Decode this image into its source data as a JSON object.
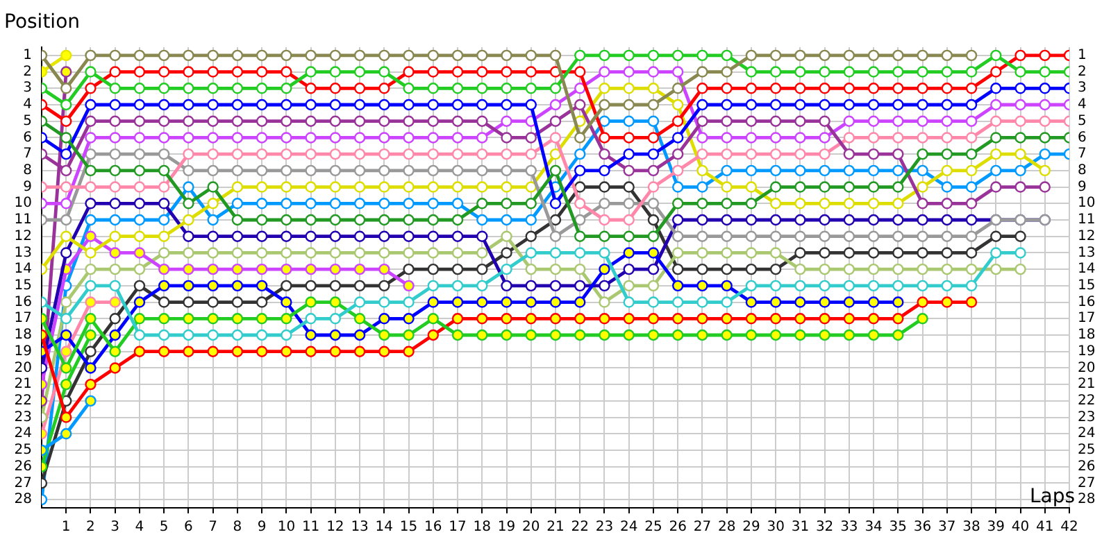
{
  "chart_data": {
    "type": "line",
    "xlabel": "Laps",
    "ylabel": "Position",
    "marker": "circle",
    "grid": true,
    "x": [
      0,
      1,
      2,
      3,
      4,
      5,
      6,
      7,
      8,
      9,
      10,
      11,
      12,
      13,
      14,
      15,
      16,
      17,
      18,
      19,
      20,
      21,
      22,
      23,
      24,
      25,
      26,
      27,
      28,
      29,
      30,
      31,
      32,
      33,
      34,
      35,
      36,
      37,
      38,
      39,
      40,
      41,
      42
    ],
    "xlim": [
      0,
      42
    ],
    "xticks": [
      1,
      2,
      3,
      4,
      5,
      6,
      7,
      8,
      9,
      10,
      11,
      12,
      13,
      14,
      15,
      16,
      17,
      18,
      19,
      20,
      21,
      22,
      23,
      24,
      25,
      26,
      27,
      28,
      29,
      30,
      31,
      32,
      33,
      34,
      35,
      36,
      37,
      38,
      39,
      40,
      41,
      42
    ],
    "ylim": [
      28.5,
      0.5
    ],
    "yticks": [
      1,
      2,
      3,
      4,
      5,
      6,
      7,
      8,
      9,
      10,
      11,
      12,
      13,
      14,
      15,
      16,
      17,
      18,
      19,
      20,
      21,
      22,
      23,
      24,
      25,
      26,
      27,
      28
    ],
    "y2lim": [
      28.5,
      0.5
    ],
    "y2ticks": [
      1,
      2,
      3,
      4,
      5,
      6,
      7,
      8,
      9,
      10,
      11,
      12,
      13,
      14,
      15,
      16,
      17,
      18,
      19,
      20,
      21,
      22,
      23,
      24,
      25,
      26,
      27,
      28
    ],
    "series": [
      {
        "color": "#888850",
        "values": [
          1,
          3,
          1,
          1,
          1,
          1,
          1,
          1,
          1,
          1,
          1,
          1,
          1,
          1,
          1,
          1,
          1,
          1,
          1,
          1,
          1,
          1,
          6,
          4,
          4,
          4,
          3,
          2,
          2,
          1,
          1,
          1,
          1,
          1,
          1,
          1,
          1,
          1,
          1,
          null,
          null,
          null,
          null
        ]
      },
      {
        "color": "#e6e600",
        "values": [
          2,
          1,
          null,
          null,
          null,
          null,
          null,
          null,
          null,
          null,
          null,
          null,
          null,
          null,
          null,
          null,
          null,
          null,
          null,
          null,
          null,
          null,
          null,
          null,
          null,
          null,
          null,
          null,
          null,
          null,
          null,
          null,
          null,
          null,
          null,
          null,
          null,
          null,
          null,
          null,
          null,
          null,
          null
        ],
        "colors": [
          "#ffff00",
          "#ffff00",
          "#ffff00",
          "#ffff00",
          "#ffff00",
          "#ffff00",
          "#ffff00",
          "#ffff00",
          "#ffff00",
          "#ffff00",
          "#ffff00",
          "#ffff00",
          "#ffff00",
          "#ffff00",
          "#ffff00",
          "#ffff00",
          "#ffff00",
          "#ffff00",
          "#ffff00",
          "#ffff00",
          "#ffff00",
          "#ffff00",
          "#ffff00",
          "#ffff00",
          "#ffff00",
          "#ffff00",
          "#ffff00",
          "#ffff00",
          "#ffff00",
          "#ffff00",
          "#ffff00",
          "#ffff00",
          "#ffff00",
          "#ffff00",
          "#ffff00",
          "#ffff00",
          "#ffff00",
          "#ffff00",
          "#ffff00",
          "#ffff00",
          "#ffff00",
          "#ffff00",
          "#ffff00"
        ]
      },
      {
        "color": "#22cc22",
        "values": [
          3,
          4,
          2,
          3,
          3,
          3,
          3,
          3,
          3,
          3,
          3,
          2,
          2,
          2,
          2,
          3,
          3,
          3,
          3,
          3,
          3,
          3,
          1,
          1,
          1,
          1,
          1,
          1,
          1,
          2,
          2,
          2,
          2,
          2,
          2,
          2,
          2,
          2,
          2,
          1,
          2,
          2,
          2
        ]
      },
      {
        "color": "#ff0000",
        "values": [
          4,
          5,
          3,
          2,
          2,
          2,
          2,
          2,
          2,
          2,
          2,
          3,
          3,
          3,
          3,
          2,
          2,
          2,
          2,
          2,
          2,
          2,
          2,
          6,
          6,
          6,
          5,
          3,
          3,
          3,
          3,
          3,
          3,
          3,
          3,
          3,
          3,
          3,
          3,
          2,
          1,
          1,
          1
        ]
      },
      {
        "color": "#229922",
        "values": [
          5,
          6,
          8,
          8,
          8,
          8,
          10,
          9,
          11,
          11,
          11,
          11,
          11,
          11,
          11,
          11,
          11,
          11,
          10,
          10,
          10,
          8,
          12,
          12,
          12,
          12,
          10,
          10,
          10,
          10,
          9,
          9,
          9,
          9,
          9,
          9,
          7,
          7,
          7,
          6,
          6,
          6,
          6
        ]
      },
      {
        "color": "#0000ff",
        "values": [
          6,
          7,
          4,
          4,
          4,
          4,
          4,
          4,
          4,
          4,
          4,
          4,
          4,
          4,
          4,
          4,
          4,
          4,
          4,
          4,
          4,
          10,
          8,
          8,
          7,
          7,
          6,
          4,
          4,
          4,
          4,
          4,
          4,
          4,
          4,
          4,
          4,
          4,
          4,
          3,
          3,
          3,
          3
        ]
      },
      {
        "color": "#993399",
        "values": [
          7,
          8,
          5,
          5,
          5,
          5,
          5,
          5,
          5,
          5,
          5,
          5,
          5,
          5,
          5,
          5,
          5,
          5,
          5,
          6,
          6,
          5,
          4,
          7,
          8,
          8,
          7,
          5,
          5,
          5,
          5,
          5,
          5,
          7,
          7,
          7,
          10,
          10,
          10,
          9,
          9,
          9,
          null
        ]
      },
      {
        "color": "#ff88aa",
        "values": [
          9,
          9,
          9,
          9,
          9,
          9,
          7,
          7,
          7,
          7,
          7,
          7,
          7,
          7,
          7,
          7,
          7,
          7,
          7,
          7,
          7,
          6,
          10,
          11,
          11,
          9,
          8,
          7,
          7,
          7,
          7,
          7,
          7,
          6,
          6,
          6,
          6,
          6,
          6,
          5,
          5,
          5,
          5
        ]
      },
      {
        "color": "#cc44ff",
        "values": [
          10,
          10,
          6,
          6,
          6,
          6,
          6,
          6,
          6,
          6,
          6,
          6,
          6,
          6,
          6,
          6,
          6,
          6,
          6,
          5,
          5,
          4,
          3,
          2,
          2,
          2,
          2,
          6,
          6,
          6,
          6,
          6,
          6,
          5,
          5,
          5,
          5,
          5,
          5,
          4,
          4,
          4,
          4
        ]
      },
      {
        "color": "#999999",
        "values": [
          11,
          11,
          7,
          7,
          7,
          7,
          8,
          8,
          8,
          8,
          8,
          8,
          8,
          8,
          8,
          8,
          8,
          8,
          8,
          8,
          8,
          12,
          11,
          10,
          10,
          10,
          12,
          12,
          12,
          12,
          12,
          12,
          12,
          12,
          12,
          12,
          12,
          12,
          12,
          11,
          11,
          11,
          null
        ]
      },
      {
        "color": "#dddd00",
        "values": [
          14,
          12,
          13,
          12,
          12,
          12,
          11,
          10,
          9,
          9,
          9,
          9,
          9,
          9,
          9,
          9,
          9,
          9,
          9,
          9,
          9,
          7,
          5,
          3,
          3,
          3,
          4,
          8,
          9,
          9,
          10,
          10,
          10,
          10,
          10,
          10,
          9,
          8,
          8,
          7,
          7,
          8,
          null
        ]
      },
      {
        "color": "#33cccc",
        "values": [
          16,
          17,
          15,
          15,
          18,
          18,
          18,
          18,
          18,
          18,
          18,
          17,
          17,
          16,
          16,
          16,
          15,
          15,
          15,
          14,
          13,
          13,
          13,
          13,
          16,
          16,
          16,
          16,
          16,
          15,
          15,
          15,
          15,
          15,
          15,
          15,
          15,
          15,
          15,
          13,
          13,
          null,
          null
        ]
      },
      {
        "color": "#22cc22",
        "values": [
          17,
          20,
          17,
          19,
          17,
          17,
          17,
          17,
          17,
          17,
          17,
          16,
          16,
          17,
          18,
          18,
          17,
          18,
          18,
          18,
          18,
          18,
          18,
          18,
          18,
          18,
          18,
          18,
          18,
          18,
          18,
          18,
          18,
          18,
          18,
          18,
          17,
          null,
          null,
          null,
          null,
          null,
          null
        ],
        "colors": [
          "#ffff00",
          "#ffff00",
          "#ffff00",
          "#ffff00",
          "#ffff00",
          "#ffff00",
          "#ffff00",
          "#ffff00",
          "#ffff00",
          "#ffff00",
          "#ffff00",
          "#ffff00",
          "#ffff00",
          "#ffff00",
          "#ffff00",
          "#ffff00",
          "#ffff00",
          "#ffff00",
          "#ffff00",
          "#ffff00",
          "#ffff00",
          "#ffff00",
          "#ffff00",
          "#ffff00",
          "#ffff00",
          "#ffff00",
          "#ffff00",
          "#ffff00",
          "#ffff00",
          "#ffff00",
          "#ffff00",
          "#ffff00",
          "#ffff00",
          "#ffff00",
          "#ffff00",
          "#ffff00",
          "#ffff00",
          "#ffff00",
          "#ffff00",
          "#ffff00",
          "#ffff00",
          "#ffff00",
          "#ffff00"
        ]
      },
      {
        "color": "#ff0000",
        "values": [
          18,
          23,
          21,
          20,
          19,
          19,
          19,
          19,
          19,
          19,
          19,
          19,
          19,
          19,
          19,
          19,
          18,
          17,
          17,
          17,
          17,
          17,
          17,
          17,
          17,
          17,
          17,
          17,
          17,
          17,
          17,
          17,
          17,
          17,
          17,
          17,
          16,
          16,
          16,
          null,
          null,
          null,
          null
        ],
        "colors": [
          "#ffff00",
          "#ffff00",
          "#ffff00",
          "#ffff00",
          "#ffff00",
          "#ffff00",
          "#ffff00",
          "#ffff00",
          "#ffff00",
          "#ffff00",
          "#ffff00",
          "#ffff00",
          "#ffff00",
          "#ffff00",
          "#ffff00",
          "#ffff00",
          "#ffff00",
          "#ffff00",
          "#ffff00",
          "#ffff00",
          "#ffff00",
          "#ffff00",
          "#ffff00",
          "#ffff00",
          "#ffff00",
          "#ffff00",
          "#ffff00",
          "#ffff00",
          "#ffff00",
          "#ffff00",
          "#ffff00",
          "#ffff00",
          "#ffff00",
          "#ffff00",
          "#ffff00",
          "#ffff00",
          "#ffff00",
          "#ffff00",
          "#ffff00",
          "#ffff00",
          "#ffff00",
          "#ffff00",
          "#ffff00"
        ]
      },
      {
        "color": "#0000ff",
        "values": [
          19,
          18,
          20,
          18,
          16,
          15,
          15,
          15,
          15,
          15,
          16,
          18,
          18,
          18,
          17,
          17,
          16,
          16,
          16,
          16,
          16,
          16,
          16,
          14,
          13,
          13,
          15,
          15,
          15,
          16,
          16,
          16,
          16,
          16,
          16,
          16,
          null,
          null,
          null,
          null,
          null,
          null,
          null
        ],
        "colors": [
          "#ffff00",
          "#ffff00",
          "#ffff00",
          "#ffff00",
          "#ffff00",
          "#ffff00",
          "#ffff00",
          "#ffff00",
          "#ffff00",
          "#ffff00",
          "#ffff00",
          "#ffff00",
          "#ffff00",
          "#ffff00",
          "#ffff00",
          "#ffff00",
          "#ffff00",
          "#ffff00",
          "#ffff00",
          "#ffff00",
          "#ffff00",
          "#ffff00",
          "#ffff00",
          "#ffff00",
          "#ffff00",
          "#ffff00",
          "#ffff00",
          "#ffff00",
          "#ffff00",
          "#ffff00",
          "#ffff00",
          "#ffff00",
          "#ffff00",
          "#ffff00",
          "#ffff00",
          "#ffff00",
          "#ffff00",
          "#ffff00",
          "#ffff00",
          "#ffff00",
          "#ffff00",
          "#ffff00",
          "#ffff00"
        ]
      },
      {
        "color": "#2200b0",
        "values": [
          20,
          13,
          10,
          10,
          10,
          10,
          12,
          12,
          12,
          12,
          12,
          12,
          12,
          12,
          12,
          12,
          12,
          12,
          12,
          15,
          15,
          15,
          15,
          15,
          14,
          14,
          11,
          11,
          11,
          11,
          11,
          11,
          11,
          11,
          11,
          11,
          11,
          11,
          11,
          11,
          11,
          11,
          null
        ]
      },
      {
        "color": "#cc44ff",
        "values": [
          21,
          14,
          12,
          13,
          13,
          14,
          14,
          14,
          14,
          14,
          14,
          14,
          14,
          14,
          14,
          15,
          null,
          null,
          null,
          null,
          null,
          null,
          null,
          null,
          null,
          null,
          null,
          null,
          null,
          null,
          null,
          null,
          null,
          null,
          null,
          null,
          null,
          null,
          null,
          null,
          null,
          null,
          null
        ],
        "colors": [
          "#ffff00",
          "#ffff00",
          "#ffff00",
          "#ffff00",
          "#ffff00",
          "#ffff00",
          "#ffff00",
          "#ffff00",
          "#ffff00",
          "#ffff00",
          "#ffff00",
          "#ffff00",
          "#ffff00",
          "#ffff00",
          "#ffff00",
          "#ffff00",
          "#ffff00",
          "#ffff00",
          "#ffff00",
          "#ffff00",
          "#ffff00",
          "#ffff00",
          "#ffff00",
          "#ffff00",
          "#ffff00",
          "#ffff00",
          "#ffff00",
          "#ffff00",
          "#ffff00",
          "#ffff00",
          "#ffff00",
          "#ffff00",
          "#ffff00",
          "#ffff00",
          "#ffff00",
          "#ffff00",
          "#ffff00",
          "#ffff00",
          "#ffff00",
          "#ffff00",
          "#ffff00",
          "#ffff00",
          "#ffff00"
        ]
      },
      {
        "color": "#993399",
        "values": [
          22,
          2,
          null,
          null,
          null,
          null,
          null,
          null,
          null,
          null,
          null,
          null,
          null,
          null,
          null,
          null,
          null,
          null,
          null,
          null,
          null,
          null,
          null,
          null,
          null,
          null,
          null,
          null,
          null,
          null,
          null,
          null,
          null,
          null,
          null,
          null,
          null,
          null,
          null,
          null,
          null,
          null,
          null
        ],
        "colors": [
          "#ffff00",
          "#ffff00",
          "#ffff00",
          "#ffff00",
          "#ffff00",
          "#ffff00",
          "#ffff00",
          "#ffff00",
          "#ffff00",
          "#ffff00",
          "#ffff00",
          "#ffff00",
          "#ffff00",
          "#ffff00",
          "#ffff00",
          "#ffff00",
          "#ffff00",
          "#ffff00",
          "#ffff00",
          "#ffff00",
          "#ffff00",
          "#ffff00",
          "#ffff00",
          "#ffff00",
          "#ffff00",
          "#ffff00",
          "#ffff00",
          "#ffff00",
          "#ffff00",
          "#ffff00",
          "#ffff00",
          "#ffff00",
          "#ffff00",
          "#ffff00",
          "#ffff00",
          "#ffff00",
          "#ffff00",
          "#ffff00",
          "#ffff00",
          "#ffff00",
          "#ffff00",
          "#ffff00",
          "#ffff00"
        ]
      },
      {
        "color": "#aac870",
        "values": [
          23,
          16,
          14,
          14,
          14,
          13,
          13,
          13,
          13,
          13,
          13,
          13,
          13,
          13,
          13,
          13,
          13,
          13,
          13,
          12,
          14,
          14,
          14,
          16,
          15,
          15,
          13,
          13,
          13,
          13,
          13,
          14,
          14,
          14,
          14,
          14,
          14,
          14,
          14,
          14,
          14,
          null,
          null
        ]
      },
      {
        "color": "#ff88aa",
        "values": [
          24,
          19,
          16,
          16,
          null,
          null,
          null,
          null,
          null,
          null,
          null,
          null,
          null,
          null,
          null,
          null,
          null,
          null,
          null,
          null,
          null,
          null,
          null,
          null,
          null,
          null,
          null,
          null,
          null,
          null,
          null,
          null,
          null,
          null,
          null,
          null,
          null,
          null,
          null,
          null,
          null,
          null,
          null
        ],
        "colors": [
          "#ffff00",
          "#ffff00",
          "#ffff00",
          "#ffff00",
          "#ffff00",
          "#ffff00",
          "#ffff00",
          "#ffff00",
          "#ffff00",
          "#ffff00",
          "#ffff00",
          "#ffff00",
          "#ffff00",
          "#ffff00",
          "#ffff00",
          "#ffff00",
          "#ffff00",
          "#ffff00",
          "#ffff00",
          "#ffff00",
          "#ffff00",
          "#ffff00",
          "#ffff00",
          "#ffff00",
          "#ffff00",
          "#ffff00",
          "#ffff00",
          "#ffff00",
          "#ffff00",
          "#ffff00",
          "#ffff00",
          "#ffff00",
          "#ffff00",
          "#ffff00",
          "#ffff00",
          "#ffff00",
          "#ffff00",
          "#ffff00",
          "#ffff00",
          "#ffff00",
          "#ffff00",
          "#ffff00",
          "#ffff00"
        ]
      },
      {
        "color": "#0099ff",
        "values": [
          25,
          24,
          22,
          null,
          null,
          null,
          null,
          null,
          null,
          null,
          null,
          null,
          null,
          null,
          null,
          null,
          null,
          null,
          null,
          null,
          null,
          null,
          null,
          null,
          null,
          null,
          null,
          null,
          null,
          null,
          null,
          null,
          null,
          null,
          null,
          null,
          null,
          null,
          null,
          null,
          null,
          null,
          null
        ],
        "colors": [
          "#ffff00",
          "#ffff00",
          "#ffff00",
          "#ffff00",
          "#ffff00",
          "#ffff00",
          "#ffff00",
          "#ffff00",
          "#ffff00",
          "#ffff00",
          "#ffff00",
          "#ffff00",
          "#ffff00",
          "#ffff00",
          "#ffff00",
          "#ffff00",
          "#ffff00",
          "#ffff00",
          "#ffff00",
          "#ffff00",
          "#ffff00",
          "#ffff00",
          "#ffff00",
          "#ffff00",
          "#ffff00",
          "#ffff00",
          "#ffff00",
          "#ffff00",
          "#ffff00",
          "#ffff00",
          "#ffff00",
          "#ffff00",
          "#ffff00",
          "#ffff00",
          "#ffff00",
          "#ffff00",
          "#ffff00",
          "#ffff00",
          "#ffff00",
          "#ffff00",
          "#ffff00",
          "#ffff00",
          "#ffff00"
        ]
      },
      {
        "color": "#22cc22",
        "values": [
          26,
          21,
          18,
          null,
          null,
          null,
          null,
          null,
          null,
          null,
          null,
          null,
          null,
          null,
          null,
          null,
          null,
          null,
          null,
          null,
          null,
          null,
          null,
          null,
          null,
          null,
          null,
          null,
          null,
          null,
          null,
          null,
          null,
          null,
          null,
          null,
          null,
          null,
          null,
          null,
          null,
          null,
          null
        ],
        "colors": [
          "#ffff00",
          "#ffff00",
          "#ffff00",
          "#ffff00",
          "#ffff00",
          "#ffff00",
          "#ffff00",
          "#ffff00",
          "#ffff00",
          "#ffff00",
          "#ffff00",
          "#ffff00",
          "#ffff00",
          "#ffff00",
          "#ffff00",
          "#ffff00",
          "#ffff00",
          "#ffff00",
          "#ffff00",
          "#ffff00",
          "#ffff00",
          "#ffff00",
          "#ffff00",
          "#ffff00",
          "#ffff00",
          "#ffff00",
          "#ffff00",
          "#ffff00",
          "#ffff00",
          "#ffff00",
          "#ffff00",
          "#ffff00",
          "#ffff00",
          "#ffff00",
          "#ffff00",
          "#ffff00",
          "#ffff00",
          "#ffff00",
          "#ffff00",
          "#ffff00",
          "#ffff00",
          "#ffff00",
          "#ffff00"
        ]
      },
      {
        "color": "#333333",
        "values": [
          27,
          22,
          19,
          17,
          15,
          16,
          16,
          16,
          16,
          16,
          15,
          15,
          15,
          15,
          15,
          14,
          14,
          14,
          14,
          13,
          12,
          11,
          9,
          9,
          9,
          11,
          14,
          14,
          14,
          14,
          14,
          13,
          13,
          13,
          13,
          13,
          13,
          13,
          13,
          12,
          12,
          null,
          null
        ]
      },
      {
        "color": "#0099ff",
        "values": [
          28,
          15,
          11,
          11,
          11,
          11,
          9,
          11,
          10,
          10,
          10,
          10,
          10,
          10,
          10,
          10,
          10,
          10,
          11,
          11,
          11,
          9,
          7,
          5,
          5,
          5,
          9,
          9,
          8,
          8,
          8,
          8,
          8,
          8,
          8,
          8,
          8,
          9,
          9,
          8,
          8,
          7,
          7
        ]
      }
    ]
  }
}
